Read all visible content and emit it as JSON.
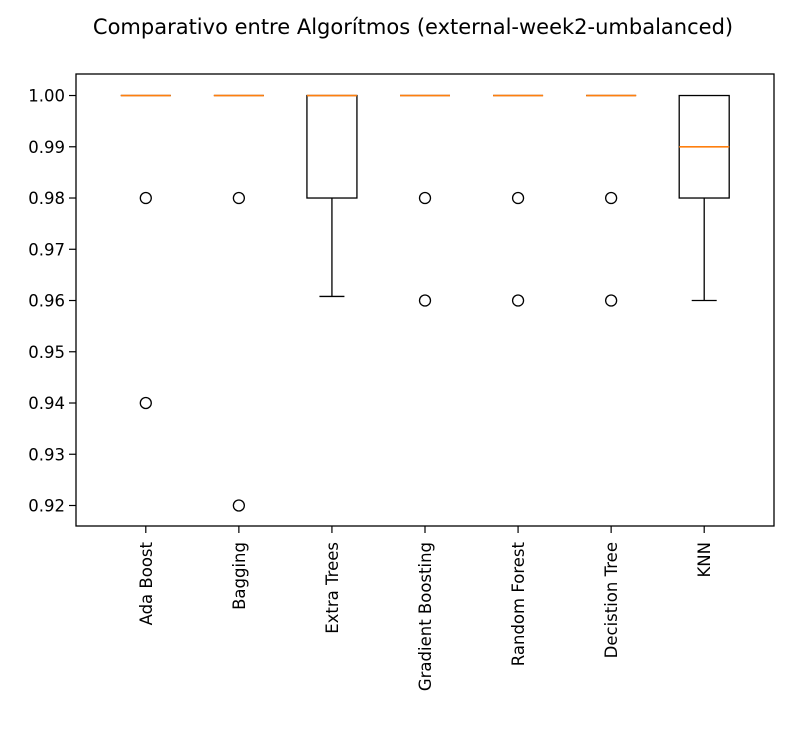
{
  "chart_data": {
    "type": "box",
    "title": "Comparativo entre Algorítmos (external-week2-umbalanced)",
    "xlabel": "",
    "ylabel": "",
    "ylim": [
      0.916,
      1.0042
    ],
    "yticks": [
      0.92,
      0.93,
      0.94,
      0.95,
      0.96,
      0.97,
      0.98,
      0.99,
      1.0
    ],
    "ytick_labels": [
      "0.92",
      "0.93",
      "0.94",
      "0.95",
      "0.96",
      "0.97",
      "0.98",
      "0.99",
      "1.00"
    ],
    "grid": false,
    "categories": [
      "Ada Boost",
      "Bagging",
      "Extra Trees",
      "Gradient Boosting",
      "Random Forest",
      "Decistion Tree",
      "KNN"
    ],
    "boxes": [
      {
        "q1": 1.0,
        "median": 1.0,
        "q3": 1.0,
        "whisker_low": 1.0,
        "whisker_high": 1.0,
        "outliers": [
          0.98,
          0.94
        ]
      },
      {
        "q1": 1.0,
        "median": 1.0,
        "q3": 1.0,
        "whisker_low": 1.0,
        "whisker_high": 1.0,
        "outliers": [
          0.98,
          0.92
        ]
      },
      {
        "q1": 0.98,
        "median": 1.0,
        "q3": 1.0,
        "whisker_low": 0.9608,
        "whisker_high": 1.0,
        "outliers": []
      },
      {
        "q1": 1.0,
        "median": 1.0,
        "q3": 1.0,
        "whisker_low": 1.0,
        "whisker_high": 1.0,
        "outliers": [
          0.98,
          0.96
        ]
      },
      {
        "q1": 1.0,
        "median": 1.0,
        "q3": 1.0,
        "whisker_low": 1.0,
        "whisker_high": 1.0,
        "outliers": [
          0.98,
          0.96
        ]
      },
      {
        "q1": 1.0,
        "median": 1.0,
        "q3": 1.0,
        "whisker_low": 1.0,
        "whisker_high": 1.0,
        "outliers": [
          0.98,
          0.96
        ]
      },
      {
        "q1": 0.98,
        "median": 0.99,
        "q3": 1.0,
        "whisker_low": 0.96,
        "whisker_high": 1.0,
        "outliers": []
      }
    ],
    "colors": {
      "box": "#000000",
      "median": "#ff7f0e",
      "outlier": "#000000"
    }
  }
}
